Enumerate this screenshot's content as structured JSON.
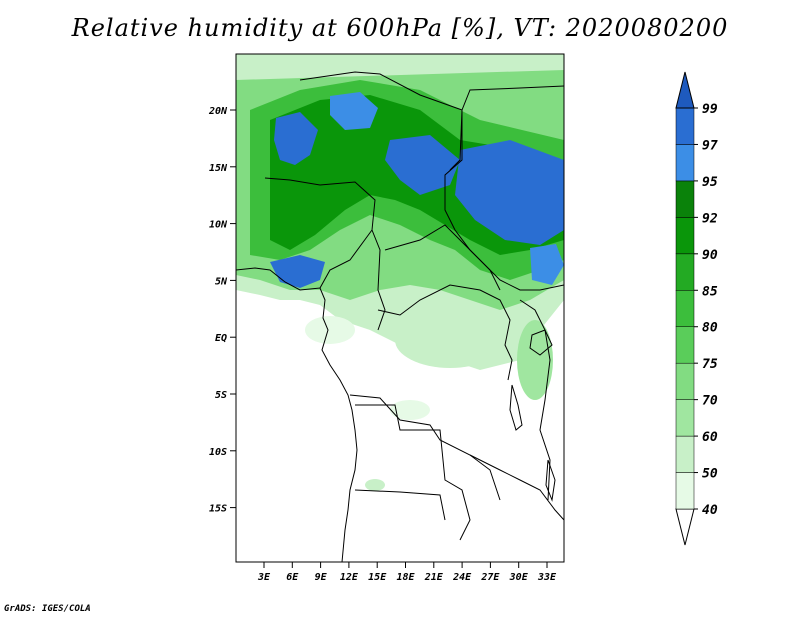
{
  "title": "Relative humidity at 600hPa [%], VT: 2020080200",
  "footer": "GrADS: IGES/COLA",
  "lat_ticks": [
    "20N",
    "15N",
    "10N",
    "5N",
    "EQ",
    "5S",
    "10S",
    "15S"
  ],
  "lon_ticks": [
    "3E",
    "6E",
    "9E",
    "12E",
    "15E",
    "18E",
    "21E",
    "24E",
    "27E",
    "30E",
    "33E"
  ],
  "colorbar": {
    "labels": [
      "40",
      "50",
      "60",
      "70",
      "75",
      "80",
      "85",
      "90",
      "92",
      "95",
      "97",
      "99"
    ],
    "colors": [
      "#ffffff",
      "#e6fae6",
      "#c8f0c8",
      "#a0e6a0",
      "#82dc82",
      "#5acd5a",
      "#3cbe3c",
      "#23aa23",
      "#0a960a",
      "#0a820a",
      "#3c8ee6",
      "#2a6ed2",
      "#1e5abe"
    ]
  },
  "map_colors": {
    "dry": "#ffffff",
    "light_green": "#c8f0c8",
    "mid_green": "#82dc82",
    "green": "#3cbe3c",
    "dark_green": "#0a960a",
    "blue": "#2a6ed2",
    "light_blue": "#3c8ee6"
  }
}
